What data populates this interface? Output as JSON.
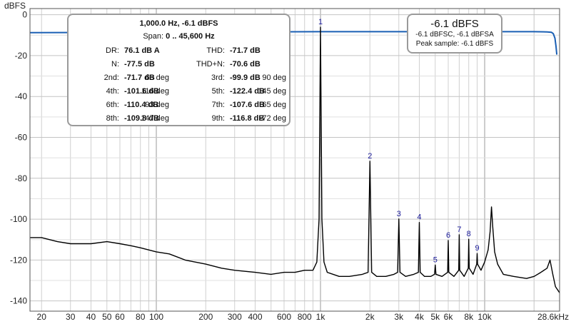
{
  "chart_data": {
    "type": "line",
    "ylabel": "dBFS",
    "xscale": "log",
    "xlim": [
      17,
      28600
    ],
    "ylim": [
      -145,
      3
    ],
    "x_ticks": [
      {
        "v": 20,
        "label": "20"
      },
      {
        "v": 30,
        "label": "30"
      },
      {
        "v": 40,
        "label": "40"
      },
      {
        "v": 50,
        "label": "50"
      },
      {
        "v": 60,
        "label": "60"
      },
      {
        "v": 80,
        "label": "80"
      },
      {
        "v": 100,
        "label": "100"
      },
      {
        "v": 200,
        "label": "200"
      },
      {
        "v": 300,
        "label": "300"
      },
      {
        "v": 400,
        "label": "400"
      },
      {
        "v": 600,
        "label": "600"
      },
      {
        "v": 800,
        "label": "800"
      },
      {
        "v": 1000,
        "label": "1k"
      },
      {
        "v": 2000,
        "label": "2k"
      },
      {
        "v": 3000,
        "label": "3k"
      },
      {
        "v": 4000,
        "label": "4k"
      },
      {
        "v": 5000,
        "label": "5k"
      },
      {
        "v": 6000,
        "label": "6k"
      },
      {
        "v": 8000,
        "label": "8k"
      },
      {
        "v": 10000,
        "label": "10k"
      },
      {
        "v": 28600,
        "label": "28.6kHz"
      }
    ],
    "y_ticks": [
      0,
      -20,
      -40,
      -60,
      -80,
      -100,
      -120,
      -140
    ],
    "grid": true,
    "series": [
      {
        "color": "#1a5fb4",
        "x": [
          17,
          100,
          1000,
          5000,
          10000,
          20000,
          24000,
          25500,
          26200,
          26800,
          27200,
          27500
        ],
        "y": [
          -8.8,
          -8.6,
          -8.3,
          -8.3,
          -8.3,
          -8.3,
          -8.4,
          -8.6,
          -9.3,
          -11.5,
          -15.5,
          -19.5
        ]
      },
      {
        "color": "#000000",
        "x": [
          17,
          20,
          25,
          30,
          40,
          50,
          60,
          70,
          80,
          100,
          120,
          150,
          200,
          250,
          300,
          400,
          500,
          600,
          700,
          800,
          900,
          950,
          980,
          1000,
          1020,
          1050,
          1100,
          1300,
          1500,
          1800,
          1950,
          2000,
          2050,
          2200,
          2500,
          2800,
          2950,
          3000,
          3050,
          3300,
          3700,
          3950,
          4000,
          4050,
          4300,
          4700,
          4950,
          5000,
          5050,
          5500,
          5950,
          6000,
          6050,
          6500,
          6950,
          7000,
          7050,
          7500,
          7950,
          8000,
          8050,
          8500,
          8950,
          9000,
          9050,
          9500,
          10000,
          10500,
          10800,
          11000,
          11200,
          11500,
          12000,
          13000,
          15000,
          18000,
          20000,
          22000,
          24000,
          25000,
          26000,
          27000,
          28600
        ],
        "y": [
          -109,
          -109,
          -111,
          -112,
          -112,
          -111,
          -112,
          -113,
          -114,
          -116,
          -117,
          -120,
          -122,
          -124,
          -125,
          -126,
          -127,
          -126,
          -126,
          -125,
          -125,
          -121,
          -100,
          -6.1,
          -100,
          -121,
          -126,
          -128,
          -128,
          -127,
          -126,
          -71.7,
          -126,
          -128,
          -128,
          -127,
          -126,
          -99.9,
          -126,
          -128,
          -127,
          -126,
          -101.6,
          -126,
          -128,
          -128,
          -127,
          -122.4,
          -127,
          -128,
          -126,
          -110.4,
          -126,
          -128,
          -125,
          -107.6,
          -125,
          -128,
          -124,
          -109.8,
          -124,
          -127,
          -122,
          -116.8,
          -122,
          -125,
          -121,
          -115,
          -106,
          -94,
          -104,
          -116,
          -122,
          -127,
          -128,
          -129,
          -128,
          -126,
          -124,
          -120,
          -127,
          -133,
          -136
        ]
      }
    ],
    "harmonic_markers": [
      {
        "label": "1",
        "x": 1000,
        "y": -6.1
      },
      {
        "label": "2",
        "x": 2000,
        "y": -71.7
      },
      {
        "label": "3",
        "x": 3000,
        "y": -99.9
      },
      {
        "label": "4",
        "x": 4000,
        "y": -101.6
      },
      {
        "label": "5",
        "x": 5000,
        "y": -122.4
      },
      {
        "label": "6",
        "x": 6000,
        "y": -110.4
      },
      {
        "label": "7",
        "x": 7000,
        "y": -107.6
      },
      {
        "label": "8",
        "x": 8000,
        "y": -109.8
      },
      {
        "label": "9",
        "x": 9000,
        "y": -116.8
      }
    ]
  },
  "info": {
    "freq_line": "1,000.0 Hz, -6.1 dBFS",
    "span_label": "Span: ",
    "span_value": "0 .. 45,600 Hz",
    "dr_label": "DR:",
    "dr_value": "76.1 dB A",
    "thd_label": "THD:",
    "thd_value": "-71.7 dB",
    "n_label": "N:",
    "n_value": "-77.5 dB",
    "thdn_label": "THD+N:",
    "thdn_value": "-70.6 dB",
    "harmonics": [
      {
        "label": "2nd:",
        "db": "-71.7 dB",
        "deg": "66 deg"
      },
      {
        "label": "3rd:",
        "db": "-99.9 dB",
        "deg": "90 deg"
      },
      {
        "label": "4th:",
        "db": "-101.6 dB",
        "deg": "116 deg"
      },
      {
        "label": "5th:",
        "db": "-122.4 dB",
        "deg": "145 deg"
      },
      {
        "label": "6th:",
        "db": "-110.4 dB",
        "deg": "93 deg"
      },
      {
        "label": "7th:",
        "db": "-107.6 dB",
        "deg": "65 deg"
      },
      {
        "label": "8th:",
        "db": "-109.8 dB",
        "deg": "147 deg"
      },
      {
        "label": "9th:",
        "db": "-116.8 dB",
        "deg": "-72 deg"
      }
    ]
  },
  "peak": {
    "title": "-6.1 dBFS",
    "line1": "-6.1 dBFSC, -6.1 dBFSA",
    "line2": "Peak sample: -6.1 dBFS"
  }
}
